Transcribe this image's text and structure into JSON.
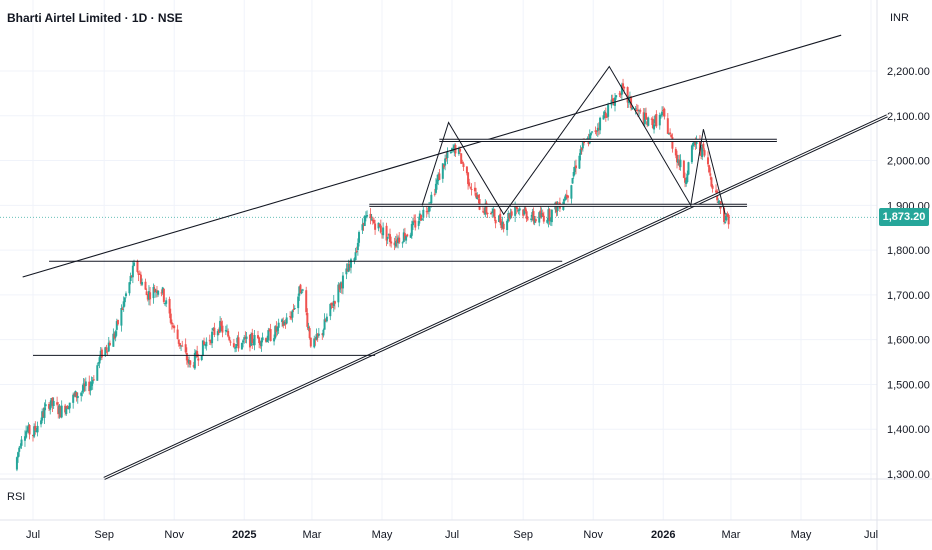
{
  "header": {
    "title": "Bharti Airtel Limited · 1D · NSE",
    "currency": "INR"
  },
  "indicator": {
    "label": "RSI"
  },
  "last_price": {
    "label": "1,873.20",
    "value": 1873.2,
    "color": "#26a69a"
  },
  "colors": {
    "up": "#26a69a",
    "down": "#ef5350",
    "grid": "#f0f3fa",
    "lines": "#131722"
  },
  "chart_data": {
    "type": "candlestick",
    "title": "Bharti Airtel Limited · 1D · NSE",
    "y_unit": "INR",
    "ylim": [
      1290,
      2280
    ],
    "y_ticks": [
      1300,
      1400,
      1500,
      1600,
      1700,
      1800,
      1900,
      2000,
      2100,
      2200
    ],
    "y_tick_labels": [
      "1,300.00",
      "1,400.00",
      "1,500.00",
      "1,600.00",
      "1,700.00",
      "1,800.00",
      "1,900.00",
      "2,000.00",
      "2,100.00",
      "2,200.00"
    ],
    "x_ticks": [
      {
        "label": "Jul",
        "date": "2024-07-01"
      },
      {
        "label": "Sep",
        "date": "2024-09-01"
      },
      {
        "label": "Nov",
        "date": "2024-11-01"
      },
      {
        "label": "2025",
        "date": "2025-01-01",
        "bold": true
      },
      {
        "label": "Mar",
        "date": "2025-03-01"
      },
      {
        "label": "May",
        "date": "2025-05-01"
      },
      {
        "label": "Jul",
        "date": "2025-07-01"
      },
      {
        "label": "Sep",
        "date": "2025-09-01"
      },
      {
        "label": "Nov",
        "date": "2025-11-01"
      },
      {
        "label": "2026",
        "date": "2026-01-01",
        "bold": true
      },
      {
        "label": "Mar",
        "date": "2026-03-01"
      },
      {
        "label": "May",
        "date": "2026-05-01"
      },
      {
        "label": "Jul",
        "date": "2026-07-01"
      }
    ],
    "price_path": [
      [
        "2024-06-15",
        1310
      ],
      [
        "2024-06-22",
        1400
      ],
      [
        "2024-07-01",
        1390
      ],
      [
        "2024-07-15",
        1460
      ],
      [
        "2024-07-25",
        1440
      ],
      [
        "2024-08-05",
        1470
      ],
      [
        "2024-08-20",
        1500
      ],
      [
        "2024-08-30",
        1570
      ],
      [
        "2024-09-10",
        1610
      ],
      [
        "2024-09-20",
        1700
      ],
      [
        "2024-09-28",
        1770
      ],
      [
        "2024-10-08",
        1700
      ],
      [
        "2024-10-20",
        1720
      ],
      [
        "2024-11-01",
        1620
      ],
      [
        "2024-11-15",
        1540
      ],
      [
        "2024-11-25",
        1580
      ],
      [
        "2024-12-10",
        1630
      ],
      [
        "2024-12-25",
        1590
      ],
      [
        "2025-01-10",
        1600
      ],
      [
        "2025-01-25",
        1610
      ],
      [
        "2025-02-10",
        1650
      ],
      [
        "2025-02-20",
        1720
      ],
      [
        "2025-03-01",
        1580
      ],
      [
        "2025-03-10",
        1620
      ],
      [
        "2025-03-25",
        1720
      ],
      [
        "2025-04-05",
        1770
      ],
      [
        "2025-04-15",
        1870
      ],
      [
        "2025-04-25",
        1860
      ],
      [
        "2025-05-10",
        1820
      ],
      [
        "2025-05-25",
        1840
      ],
      [
        "2025-06-10",
        1900
      ],
      [
        "2025-06-25",
        2000
      ],
      [
        "2025-07-05",
        2030
      ],
      [
        "2025-07-15",
        1960
      ],
      [
        "2025-07-25",
        1900
      ],
      [
        "2025-08-05",
        1880
      ],
      [
        "2025-08-15",
        1860
      ],
      [
        "2025-08-25",
        1900
      ],
      [
        "2025-09-10",
        1870
      ],
      [
        "2025-09-25",
        1880
      ],
      [
        "2025-10-10",
        1930
      ],
      [
        "2025-10-20",
        2020
      ],
      [
        "2025-11-01",
        2060
      ],
      [
        "2025-11-10",
        2100
      ],
      [
        "2025-11-25",
        2160
      ],
      [
        "2025-12-05",
        2120
      ],
      [
        "2025-12-20",
        2080
      ],
      [
        "2026-01-01",
        2100
      ],
      [
        "2026-01-10",
        2030
      ],
      [
        "2026-01-20",
        1960
      ],
      [
        "2026-01-28",
        2040
      ],
      [
        "2026-02-05",
        2020
      ],
      [
        "2026-02-15",
        1930
      ],
      [
        "2026-02-24",
        1870
      ],
      [
        "2026-02-28",
        1873.2
      ]
    ],
    "drawings": {
      "channel_upper": [
        [
          "2024-06-22",
          1740
        ],
        [
          "2026-06-05",
          2280
        ]
      ],
      "channel_lower": [
        [
          "2024-09-01",
          1290
        ],
        [
          "2026-07-15",
          2100
        ]
      ],
      "hlines": [
        {
          "y": 1565,
          "from": "2024-07-01",
          "to": "2025-04-25"
        },
        {
          "y": 1775,
          "from": "2024-07-15",
          "to": "2025-10-05"
        },
        {
          "y": 1900,
          "from": "2025-04-20",
          "to": "2026-03-15"
        },
        {
          "y": 2045,
          "from": "2025-06-20",
          "to": "2026-04-10"
        }
      ],
      "zigzag": [
        [
          "2025-06-05",
          1900
        ],
        [
          "2025-06-28",
          2085
        ],
        [
          "2025-08-15",
          1880
        ],
        [
          "2025-11-15",
          2210
        ],
        [
          "2026-01-25",
          1900
        ],
        [
          "2026-02-05",
          2070
        ],
        [
          "2026-02-24",
          1880
        ]
      ]
    }
  }
}
